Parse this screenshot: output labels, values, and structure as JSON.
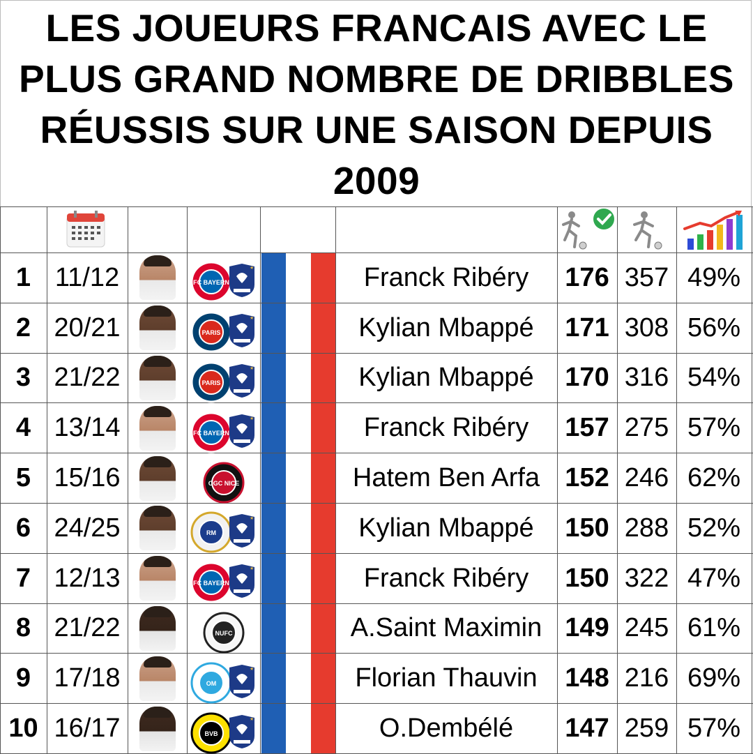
{
  "title": "LES JOUEURS FRANCAIS AVEC LE PLUS GRAND NOMBRE DE DRIBBLES RÉUSSIS SUR UNE SAISON DEPUIS 2009",
  "header_icons": {
    "season": "calendar-icon",
    "successful": "player-dribbling-check-icon",
    "attempts": "player-dribbling-icon",
    "rate": "bar-chart-rising-icon"
  },
  "colors": {
    "flag_blue": "#1f5fb4",
    "flag_red": "#e63b2e"
  },
  "rows": [
    {
      "rank": "1",
      "season": "11/12",
      "club": "bayern-munich",
      "france": true,
      "name": "Franck Ribéry",
      "successful": "176",
      "attempts": "357",
      "rate": "49%"
    },
    {
      "rank": "2",
      "season": "20/21",
      "club": "psg",
      "france": true,
      "name": "Kylian Mbappé",
      "successful": "171",
      "attempts": "308",
      "rate": "56%"
    },
    {
      "rank": "3",
      "season": "21/22",
      "club": "psg",
      "france": true,
      "name": "Kylian Mbappé",
      "successful": "170",
      "attempts": "316",
      "rate": "54%"
    },
    {
      "rank": "4",
      "season": "13/14",
      "club": "bayern-munich",
      "france": true,
      "name": "Franck Ribéry",
      "successful": "157",
      "attempts": "275",
      "rate": "57%"
    },
    {
      "rank": "5",
      "season": "15/16",
      "club": "ogc-nice",
      "france": false,
      "name": "Hatem Ben Arfa",
      "successful": "152",
      "attempts": "246",
      "rate": "62%"
    },
    {
      "rank": "6",
      "season": "24/25",
      "club": "real-madrid",
      "france": true,
      "name": "Kylian Mbappé",
      "successful": "150",
      "attempts": "288",
      "rate": "52%"
    },
    {
      "rank": "7",
      "season": "12/13",
      "club": "bayern-munich",
      "france": true,
      "name": "Franck Ribéry",
      "successful": "150",
      "attempts": "322",
      "rate": "47%"
    },
    {
      "rank": "8",
      "season": "21/22",
      "club": "newcastle",
      "france": false,
      "name": "A.Saint Maximin",
      "successful": "149",
      "attempts": "245",
      "rate": "61%"
    },
    {
      "rank": "9",
      "season": "17/18",
      "club": "marseille",
      "france": true,
      "name": "Florian Thauvin",
      "successful": "148",
      "attempts": "216",
      "rate": "69%"
    },
    {
      "rank": "10",
      "season": "16/17",
      "club": "dortmund",
      "france": true,
      "name": "O.Dembélé",
      "successful": "147",
      "attempts": "259",
      "rate": "57%"
    }
  ]
}
